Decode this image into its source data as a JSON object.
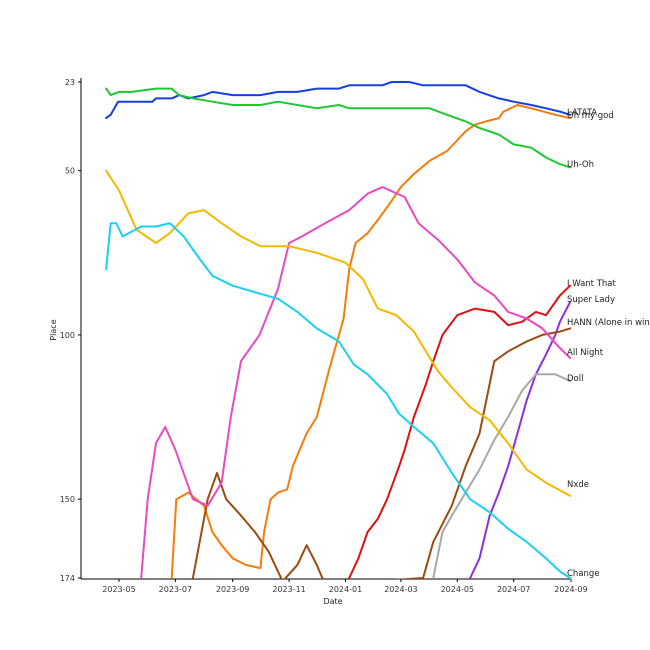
{
  "chart_data": {
    "type": "line",
    "title": "",
    "xlabel": "Date",
    "ylabel": "Place",
    "ylim": [
      23,
      174
    ],
    "y_inverted": true,
    "xlim": [
      "2023-04-15",
      "2024-09-05"
    ],
    "grid": false,
    "legend": "labels at line ends",
    "x_ticks": [
      "2023-05",
      "2023-07",
      "2023-09",
      "2023-11",
      "2024-01",
      "2024-03",
      "2024-05",
      "2024-07",
      "2024-09"
    ],
    "y_ticks": [
      23,
      50,
      100,
      150,
      174
    ],
    "series": [
      {
        "name": "LATATA",
        "color": "#1440e0",
        "points": [
          [
            "2023-04-17",
            34
          ],
          [
            "2023-04-22",
            33
          ],
          [
            "2023-04-30",
            29
          ],
          [
            "2023-05-15",
            29
          ],
          [
            "2023-06-06",
            29
          ],
          [
            "2023-06-10",
            28
          ],
          [
            "2023-06-27",
            28
          ],
          [
            "2023-07-05",
            27
          ],
          [
            "2023-07-15",
            28
          ],
          [
            "2023-08-01",
            27
          ],
          [
            "2023-08-10",
            26
          ],
          [
            "2023-09-01",
            27
          ],
          [
            "2023-10-01",
            27
          ],
          [
            "2023-10-20",
            26
          ],
          [
            "2023-11-10",
            26
          ],
          [
            "2023-12-01",
            25
          ],
          [
            "2023-12-25",
            25
          ],
          [
            "2024-01-05",
            24
          ],
          [
            "2024-02-10",
            24
          ],
          [
            "2024-02-20",
            23
          ],
          [
            "2024-03-10",
            23
          ],
          [
            "2024-03-25",
            24
          ],
          [
            "2024-05-10",
            24
          ],
          [
            "2024-05-25",
            26
          ],
          [
            "2024-06-15",
            28
          ],
          [
            "2024-07-01",
            29
          ],
          [
            "2024-07-20",
            30
          ],
          [
            "2024-08-05",
            31
          ],
          [
            "2024-08-20",
            32
          ],
          [
            "2024-08-31",
            33
          ]
        ]
      },
      {
        "name": "Oh my god",
        "color": "#f57c0a",
        "points": [
          [
            "2023-06-27",
            174
          ],
          [
            "2023-07-02",
            150
          ],
          [
            "2023-07-15",
            148
          ],
          [
            "2023-08-01",
            152
          ],
          [
            "2023-08-10",
            160
          ],
          [
            "2023-08-20",
            164
          ],
          [
            "2023-09-01",
            168
          ],
          [
            "2023-09-15",
            170
          ],
          [
            "2023-10-01",
            171
          ],
          [
            "2023-10-05",
            160
          ],
          [
            "2023-10-12",
            150
          ],
          [
            "2023-10-20",
            148
          ],
          [
            "2023-10-30",
            147
          ],
          [
            "2023-11-05",
            140
          ],
          [
            "2023-11-20",
            130
          ],
          [
            "2023-12-01",
            125
          ],
          [
            "2023-12-15",
            110
          ],
          [
            "2023-12-30",
            95
          ],
          [
            "2024-01-05",
            80
          ],
          [
            "2024-01-12",
            72
          ],
          [
            "2024-01-25",
            69
          ],
          [
            "2024-02-05",
            65
          ],
          [
            "2024-02-18",
            60
          ],
          [
            "2024-03-01",
            55
          ],
          [
            "2024-03-15",
            51
          ],
          [
            "2024-04-01",
            47
          ],
          [
            "2024-04-20",
            44
          ],
          [
            "2024-05-10",
            38
          ],
          [
            "2024-05-20",
            36
          ],
          [
            "2024-06-01",
            35
          ],
          [
            "2024-06-15",
            34
          ],
          [
            "2024-06-20",
            32
          ],
          [
            "2024-07-05",
            30
          ],
          [
            "2024-07-20",
            31
          ],
          [
            "2024-08-15",
            33
          ],
          [
            "2024-08-31",
            34
          ]
        ]
      },
      {
        "name": "Uh-Oh",
        "color": "#1ec832",
        "points": [
          [
            "2023-04-17",
            25
          ],
          [
            "2023-04-22",
            27
          ],
          [
            "2023-05-01",
            26
          ],
          [
            "2023-05-15",
            26
          ],
          [
            "2023-06-10",
            25
          ],
          [
            "2023-06-27",
            25
          ],
          [
            "2023-07-05",
            27
          ],
          [
            "2023-07-20",
            28
          ],
          [
            "2023-08-10",
            29
          ],
          [
            "2023-09-01",
            30
          ],
          [
            "2023-10-01",
            30
          ],
          [
            "2023-10-20",
            29
          ],
          [
            "2023-11-10",
            30
          ],
          [
            "2023-12-01",
            31
          ],
          [
            "2023-12-25",
            30
          ],
          [
            "2024-01-05",
            31
          ],
          [
            "2024-02-10",
            31
          ],
          [
            "2024-03-10",
            31
          ],
          [
            "2024-04-01",
            31
          ],
          [
            "2024-04-20",
            33
          ],
          [
            "2024-05-10",
            35
          ],
          [
            "2024-05-25",
            37
          ],
          [
            "2024-06-15",
            39
          ],
          [
            "2024-07-01",
            42
          ],
          [
            "2024-07-20",
            43
          ],
          [
            "2024-08-05",
            46
          ],
          [
            "2024-08-20",
            48
          ],
          [
            "2024-08-31",
            49
          ]
        ]
      },
      {
        "name": "I Want That",
        "color": "#dd1111",
        "points": [
          [
            "2024-01-05",
            174
          ],
          [
            "2024-01-15",
            168
          ],
          [
            "2024-01-25",
            160
          ],
          [
            "2024-02-05",
            156
          ],
          [
            "2024-02-15",
            150
          ],
          [
            "2024-02-28",
            140
          ],
          [
            "2024-03-05",
            135
          ],
          [
            "2024-03-15",
            125
          ],
          [
            "2024-03-28",
            115
          ],
          [
            "2024-04-05",
            108
          ],
          [
            "2024-04-15",
            100
          ],
          [
            "2024-05-01",
            94
          ],
          [
            "2024-05-20",
            92
          ],
          [
            "2024-06-10",
            93
          ],
          [
            "2024-06-25",
            97
          ],
          [
            "2024-07-10",
            96
          ],
          [
            "2024-07-25",
            93
          ],
          [
            "2024-08-05",
            94
          ],
          [
            "2024-08-20",
            88
          ],
          [
            "2024-08-31",
            85
          ]
        ]
      },
      {
        "name": "Super Lady",
        "color": "#8c2ee0",
        "points": [
          [
            "2024-05-15",
            174
          ],
          [
            "2024-05-25",
            168
          ],
          [
            "2024-06-05",
            155
          ],
          [
            "2024-06-15",
            148
          ],
          [
            "2024-06-25",
            140
          ],
          [
            "2024-07-05",
            130
          ],
          [
            "2024-07-15",
            120
          ],
          [
            "2024-07-25",
            112
          ],
          [
            "2024-08-05",
            106
          ],
          [
            "2024-08-15",
            100
          ],
          [
            "2024-08-20",
            96
          ],
          [
            "2024-08-31",
            90
          ]
        ]
      },
      {
        "name": "HANN (Alone in winter)",
        "color": "#9c4a10",
        "points": [
          [
            "2023-07-20",
            174
          ],
          [
            "2023-08-05",
            150
          ],
          [
            "2023-08-15",
            142
          ],
          [
            "2023-08-25",
            150
          ],
          [
            "2023-09-10",
            155
          ],
          [
            "2023-09-25",
            160
          ],
          [
            "2023-10-10",
            166
          ],
          [
            "2023-10-25",
            175
          ],
          [
            "2023-11-10",
            170
          ],
          [
            "2023-11-20",
            164
          ],
          [
            "2023-12-01",
            170
          ],
          [
            "2023-12-10",
            176
          ],
          [
            "2024-03-25",
            174
          ],
          [
            "2024-04-05",
            163
          ],
          [
            "2024-04-25",
            152
          ],
          [
            "2024-05-10",
            140
          ],
          [
            "2024-05-25",
            130
          ],
          [
            "2024-06-10",
            108
          ],
          [
            "2024-06-25",
            105
          ],
          [
            "2024-07-15",
            102
          ],
          [
            "2024-08-01",
            100
          ],
          [
            "2024-08-20",
            99
          ],
          [
            "2024-08-31",
            98
          ]
        ]
      },
      {
        "name": "All Night",
        "color": "#e84ac0",
        "points": [
          [
            "2023-05-25",
            174
          ],
          [
            "2023-06-01",
            150
          ],
          [
            "2023-06-10",
            133
          ],
          [
            "2023-06-20",
            128
          ],
          [
            "2023-07-01",
            135
          ],
          [
            "2023-07-20",
            150
          ],
          [
            "2023-08-05",
            152
          ],
          [
            "2023-08-20",
            145
          ],
          [
            "2023-08-30",
            125
          ],
          [
            "2023-09-10",
            108
          ],
          [
            "2023-09-30",
            100
          ],
          [
            "2023-10-20",
            86
          ],
          [
            "2023-11-01",
            72
          ],
          [
            "2023-11-15",
            70
          ],
          [
            "2023-12-10",
            66
          ],
          [
            "2024-01-05",
            62
          ],
          [
            "2024-01-25",
            57
          ],
          [
            "2024-02-10",
            55
          ],
          [
            "2024-03-05",
            58
          ],
          [
            "2024-03-20",
            66
          ],
          [
            "2024-04-10",
            71
          ],
          [
            "2024-05-01",
            77
          ],
          [
            "2024-05-20",
            84
          ],
          [
            "2024-06-10",
            88
          ],
          [
            "2024-06-25",
            93
          ],
          [
            "2024-07-15",
            95
          ],
          [
            "2024-08-01",
            98
          ],
          [
            "2024-08-20",
            104
          ],
          [
            "2024-08-31",
            107
          ]
        ]
      },
      {
        "name": "Doll",
        "color": "#a8a8a8",
        "points": [
          [
            "2024-04-05",
            174
          ],
          [
            "2024-04-15",
            160
          ],
          [
            "2024-04-25",
            155
          ],
          [
            "2024-05-10",
            148
          ],
          [
            "2024-05-25",
            141
          ],
          [
            "2024-06-10",
            132
          ],
          [
            "2024-06-25",
            125
          ],
          [
            "2024-07-10",
            117
          ],
          [
            "2024-07-25",
            112
          ],
          [
            "2024-08-15",
            112
          ],
          [
            "2024-08-31",
            114
          ]
        ]
      },
      {
        "name": "Nxde",
        "color": "#f5b800",
        "points": [
          [
            "2023-04-17",
            50
          ],
          [
            "2023-05-01",
            56
          ],
          [
            "2023-05-20",
            68
          ],
          [
            "2023-06-10",
            72
          ],
          [
            "2023-06-25",
            69
          ],
          [
            "2023-07-15",
            63
          ],
          [
            "2023-08-01",
            62
          ],
          [
            "2023-08-20",
            66
          ],
          [
            "2023-09-10",
            70
          ],
          [
            "2023-10-01",
            73
          ],
          [
            "2023-11-01",
            73
          ],
          [
            "2023-12-01",
            75
          ],
          [
            "2024-01-01",
            78
          ],
          [
            "2024-01-20",
            83
          ],
          [
            "2024-02-05",
            92
          ],
          [
            "2024-02-25",
            94
          ],
          [
            "2024-03-15",
            99
          ],
          [
            "2024-04-10",
            111
          ],
          [
            "2024-04-25",
            116
          ],
          [
            "2024-05-15",
            122
          ],
          [
            "2024-06-05",
            126
          ],
          [
            "2024-06-25",
            133
          ],
          [
            "2024-07-15",
            141
          ],
          [
            "2024-08-05",
            145
          ],
          [
            "2024-08-31",
            149
          ]
        ]
      },
      {
        "name": "Change",
        "color": "#1ad0f0",
        "points": [
          [
            "2023-04-17",
            80
          ],
          [
            "2023-04-22",
            66
          ],
          [
            "2023-04-28",
            66
          ],
          [
            "2023-05-05",
            70
          ],
          [
            "2023-05-25",
            67
          ],
          [
            "2023-06-10",
            67
          ],
          [
            "2023-06-25",
            66
          ],
          [
            "2023-07-10",
            70
          ],
          [
            "2023-07-25",
            76
          ],
          [
            "2023-08-10",
            82
          ],
          [
            "2023-09-01",
            85
          ],
          [
            "2023-09-25",
            87
          ],
          [
            "2023-10-20",
            89
          ],
          [
            "2023-11-10",
            93
          ],
          [
            "2023-12-01",
            98
          ],
          [
            "2023-12-25",
            102
          ],
          [
            "2024-01-10",
            109
          ],
          [
            "2024-01-25",
            112
          ],
          [
            "2024-02-15",
            118
          ],
          [
            "2024-02-28",
            124
          ],
          [
            "2024-03-15",
            128
          ],
          [
            "2024-04-05",
            133
          ],
          [
            "2024-04-25",
            142
          ],
          [
            "2024-05-15",
            150
          ],
          [
            "2024-06-05",
            154
          ],
          [
            "2024-06-25",
            159
          ],
          [
            "2024-07-15",
            163
          ],
          [
            "2024-08-05",
            168
          ],
          [
            "2024-08-20",
            172
          ],
          [
            "2024-08-31",
            174
          ]
        ]
      }
    ]
  }
}
